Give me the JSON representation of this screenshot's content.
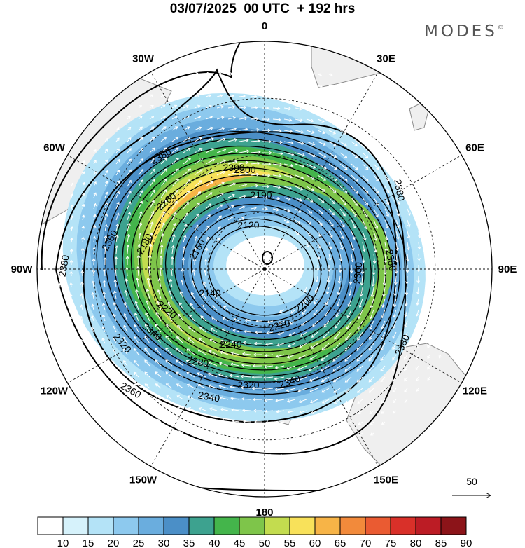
{
  "header": {
    "title": "03/07/2025  00 UTC  + 192 hrs",
    "logo_text": "MODES",
    "logo_mark": "©"
  },
  "map": {
    "projection": "south-polar-stereographic",
    "longitude_labels": [
      {
        "id": "0",
        "text": "0",
        "lon": 0
      },
      {
        "id": "30e",
        "text": "30E",
        "lon": 30
      },
      {
        "id": "60e",
        "text": "60E",
        "lon": 60
      },
      {
        "id": "90e",
        "text": "90E",
        "lon": 90
      },
      {
        "id": "120e",
        "text": "120E",
        "lon": 120
      },
      {
        "id": "150e",
        "text": "150E",
        "lon": 150
      },
      {
        "id": "180",
        "text": "180",
        "lon": 180
      },
      {
        "id": "150w",
        "text": "150W",
        "lon": -150
      },
      {
        "id": "120w",
        "text": "120W",
        "lon": -120
      },
      {
        "id": "90w",
        "text": "90W",
        "lon": -90
      },
      {
        "id": "60w",
        "text": "60W",
        "lon": -60
      },
      {
        "id": "30w",
        "text": "30W",
        "lon": -30
      }
    ],
    "contour_labels": [
      "2380",
      "2380",
      "2380",
      "2380",
      "2360",
      "2360",
      "2360",
      "2360",
      "2340",
      "2340",
      "2340",
      "2320",
      "2320",
      "2300",
      "2300",
      "2280",
      "2260",
      "2240",
      "2220",
      "2220",
      "2200",
      "2190",
      "2180",
      "2160",
      "2140",
      "2120"
    ],
    "vector_reference": {
      "value": "50"
    },
    "colors": {
      "land": "#efefef",
      "coast": "#8a8a8a",
      "graticule": "#111111"
    }
  },
  "colorbar": {
    "ticks": [
      "10",
      "15",
      "20",
      "25",
      "30",
      "35",
      "40",
      "45",
      "50",
      "55",
      "60",
      "65",
      "70",
      "75",
      "80",
      "85",
      "90"
    ],
    "colors": [
      "#ffffff",
      "#d6f2fb",
      "#b4e3f7",
      "#8dc9ee",
      "#6aadde",
      "#4b8fc7",
      "#3da28f",
      "#44b54b",
      "#7ec54a",
      "#c3dc4f",
      "#f8e15a",
      "#f7b447",
      "#f28a3b",
      "#ea5b32",
      "#d93029",
      "#bc1c25",
      "#8c1419"
    ]
  }
}
